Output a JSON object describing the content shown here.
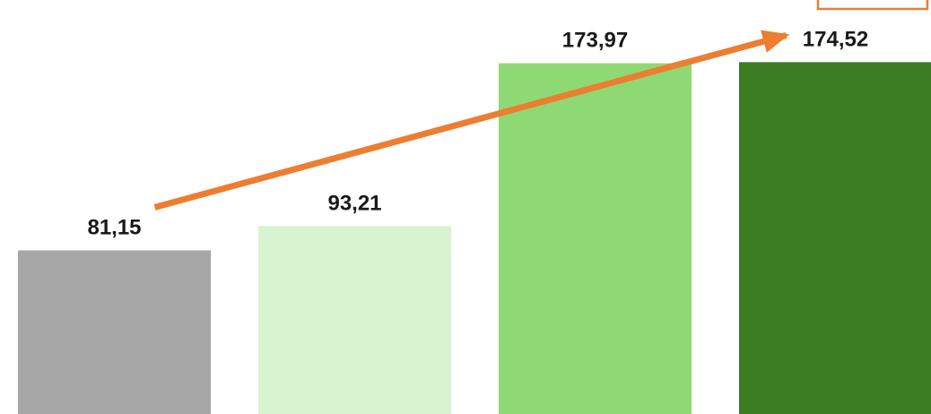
{
  "chart_data": {
    "type": "bar",
    "categories": [
      "",
      "",
      "",
      ""
    ],
    "values": [
      81.15,
      93.21,
      173.97,
      174.52
    ],
    "value_labels": [
      "81,15",
      "93,21",
      "173,97",
      "174,52"
    ],
    "bar_colors": [
      "#a6a6a6",
      "#d9f2d0",
      "#8fd974",
      "#3b7d23"
    ],
    "trend_arrow": {
      "from_index": 0,
      "to_index": 3,
      "color": "#ed7d31"
    },
    "corner_box": {
      "position": "top-right",
      "color": "#ed7d31"
    },
    "ylim": [
      0,
      200
    ],
    "grid": false,
    "title": "",
    "xlabel": "",
    "ylabel": ""
  }
}
